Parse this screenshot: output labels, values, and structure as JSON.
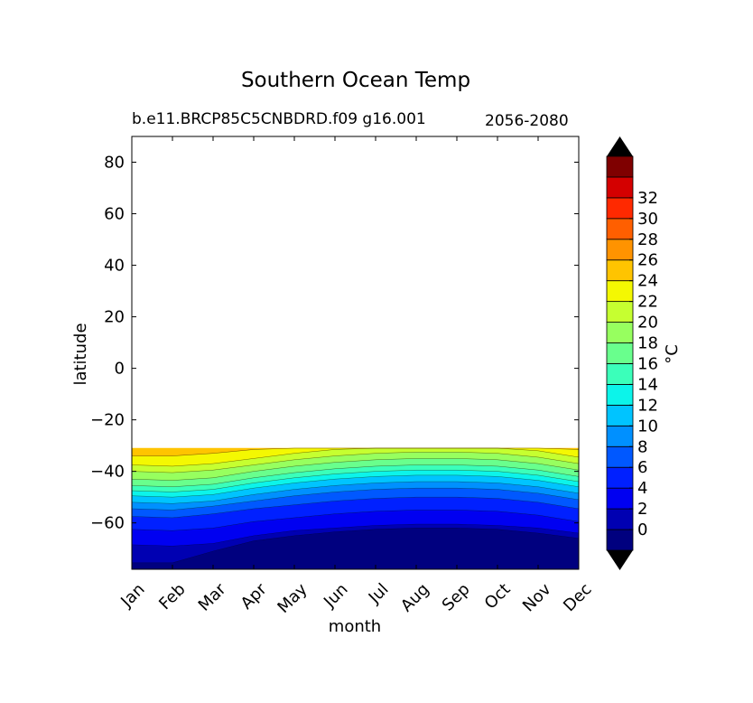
{
  "chart_data": {
    "type": "contour",
    "title": "Southern Ocean Temp",
    "subtitle_left": "b.e11.BRCP85C5CNBDRD.f09 g16.001",
    "subtitle_right": "2056-2080",
    "xlabel": "month",
    "ylabel": "latitude",
    "x_categories": [
      "Jan",
      "Feb",
      "Mar",
      "Apr",
      "May",
      "Jun",
      "Jul",
      "Aug",
      "Sep",
      "Oct",
      "Nov",
      "Dec"
    ],
    "ylim": [
      -78,
      90
    ],
    "yticks": [
      80,
      60,
      40,
      20,
      0,
      -20,
      -40,
      -60
    ],
    "ytick_labels": [
      "80",
      "60",
      "40",
      "20",
      "0",
      "−20",
      "−40",
      "−60"
    ],
    "data_lat_max": -31,
    "isotherm_latitudes": {
      "levels": [
        0,
        2,
        4,
        6,
        8,
        10,
        12,
        14,
        16,
        18,
        20,
        22,
        24
      ],
      "rows": [
        [
          -75.5,
          -68.5,
          -62.5,
          -57.5,
          -54.5,
          -52.0,
          -49.5,
          -47.5,
          -45.5,
          -43.0,
          -40.0,
          -37.5,
          -34.0
        ],
        [
          -75.5,
          -69.0,
          -63.0,
          -58.0,
          -55.0,
          -52.5,
          -50.0,
          -48.0,
          -46.0,
          -43.5,
          -40.5,
          -38.0,
          -34.0
        ],
        [
          -71.0,
          -68.0,
          -62.0,
          -56.5,
          -53.5,
          -51.5,
          -49.0,
          -47.0,
          -45.0,
          -42.5,
          -39.5,
          -37.0,
          -33.0
        ],
        [
          -67.0,
          -65.0,
          -59.5,
          -54.5,
          -51.5,
          -49.0,
          -46.5,
          -44.5,
          -42.5,
          -40.0,
          -37.5,
          -35.0,
          -31.5
        ],
        [
          -65.0,
          -63.0,
          -58.0,
          -53.0,
          -49.5,
          -47.0,
          -44.5,
          -42.5,
          -40.5,
          -38.0,
          -35.5,
          -33.0,
          -31.0
        ],
        [
          -63.5,
          -62.0,
          -56.5,
          -51.5,
          -48.0,
          -45.5,
          -43.0,
          -41.0,
          -39.0,
          -36.5,
          -34.0,
          -31.5,
          -31.0
        ],
        [
          -62.5,
          -61.0,
          -55.5,
          -50.5,
          -47.0,
          -44.5,
          -42.0,
          -40.0,
          -38.0,
          -35.5,
          -33.0,
          -31.0,
          -31.0
        ],
        [
          -62.0,
          -60.5,
          -55.0,
          -50.0,
          -46.5,
          -44.0,
          -41.5,
          -39.5,
          -37.5,
          -35.0,
          -32.5,
          -31.0,
          -31.0
        ],
        [
          -62.0,
          -60.5,
          -55.0,
          -50.0,
          -46.5,
          -44.0,
          -41.5,
          -39.5,
          -37.5,
          -35.0,
          -32.5,
          -31.0,
          -31.0
        ],
        [
          -62.5,
          -61.0,
          -55.5,
          -50.5,
          -47.0,
          -44.5,
          -42.0,
          -40.0,
          -38.0,
          -35.5,
          -33.0,
          -31.0,
          -31.0
        ],
        [
          -64.0,
          -62.0,
          -57.0,
          -52.0,
          -48.5,
          -46.0,
          -43.5,
          -41.5,
          -39.5,
          -37.0,
          -34.5,
          -32.0,
          -31.0
        ],
        [
          -66.0,
          -64.0,
          -59.5,
          -54.5,
          -51.0,
          -48.5,
          -46.0,
          -44.0,
          -42.0,
          -39.5,
          -37.0,
          -34.5,
          -31.5
        ]
      ]
    },
    "colorbar": {
      "label": "°C",
      "tick_labels": [
        "0",
        "2",
        "4",
        "6",
        "8",
        "10",
        "12",
        "14",
        "16",
        "18",
        "20",
        "22",
        "24",
        "26",
        "28",
        "30",
        "32"
      ],
      "band_colors": [
        "#00007f",
        "#0000b2",
        "#0000f1",
        "#0020ff",
        "#0058ff",
        "#0090ff",
        "#00c4ff",
        "#0cf4ea",
        "#3bffba",
        "#69ff8d",
        "#97ff5f",
        "#c6ff30",
        "#f4f802",
        "#ffc400",
        "#ff9300",
        "#ff5f00",
        "#ff2900",
        "#d40000",
        "#7f0000"
      ],
      "extend_low_color": "#000000",
      "extend_high_color": "#000000"
    }
  }
}
